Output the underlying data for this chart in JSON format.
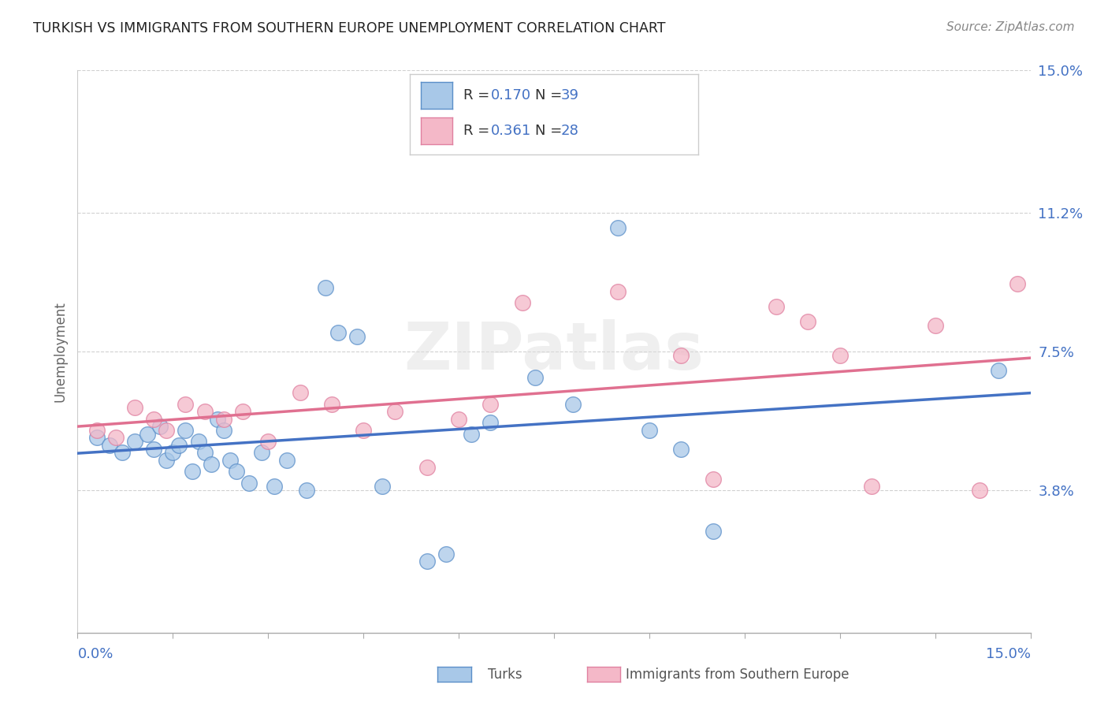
{
  "title": "TURKISH VS IMMIGRANTS FROM SOUTHERN EUROPE UNEMPLOYMENT CORRELATION CHART",
  "source": "Source: ZipAtlas.com",
  "ylabel": "Unemployment",
  "ytick_labels": [
    "3.8%",
    "7.5%",
    "11.2%",
    "15.0%"
  ],
  "ytick_values": [
    3.8,
    7.5,
    11.2,
    15.0
  ],
  "xtick_labels_bottom": [
    "0.0%",
    "15.0%"
  ],
  "xmin": 0.0,
  "xmax": 15.0,
  "ymin": 0.0,
  "ymax": 15.0,
  "legend_label1": "Turks",
  "legend_label2": "Immigrants from Southern Europe",
  "legend_R1": "0.170",
  "legend_N1": "39",
  "legend_R2": "0.361",
  "legend_N2": "28",
  "color_blue_fill": "#A8C8E8",
  "color_blue_edge": "#5B8FC9",
  "color_pink_fill": "#F4B8C8",
  "color_pink_edge": "#E080A0",
  "color_line_blue": "#4472C4",
  "color_line_pink": "#E07090",
  "color_axis_val": "#4472C4",
  "color_legend_text": "#333333",
  "turks_x": [
    0.3,
    0.5,
    0.7,
    0.9,
    1.1,
    1.2,
    1.3,
    1.4,
    1.5,
    1.6,
    1.7,
    1.8,
    1.9,
    2.0,
    2.1,
    2.2,
    2.3,
    2.4,
    2.5,
    2.7,
    2.9,
    3.1,
    3.3,
    3.6,
    3.9,
    4.1,
    4.4,
    4.8,
    5.5,
    5.8,
    6.2,
    6.5,
    7.2,
    7.8,
    8.5,
    9.0,
    9.5,
    10.0,
    14.5
  ],
  "turks_y": [
    5.2,
    5.0,
    4.8,
    5.1,
    5.3,
    4.9,
    5.5,
    4.6,
    4.8,
    5.0,
    5.4,
    4.3,
    5.1,
    4.8,
    4.5,
    5.7,
    5.4,
    4.6,
    4.3,
    4.0,
    4.8,
    3.9,
    4.6,
    3.8,
    9.2,
    8.0,
    7.9,
    3.9,
    1.9,
    2.1,
    5.3,
    5.6,
    6.8,
    6.1,
    10.8,
    5.4,
    4.9,
    2.7,
    7.0
  ],
  "se_x": [
    0.3,
    0.6,
    0.9,
    1.2,
    1.4,
    1.7,
    2.0,
    2.3,
    2.6,
    3.0,
    3.5,
    4.0,
    4.5,
    5.0,
    5.5,
    6.0,
    6.5,
    7.0,
    8.5,
    9.5,
    10.0,
    11.0,
    11.5,
    12.0,
    12.5,
    13.5,
    14.2,
    14.8
  ],
  "se_y": [
    5.4,
    5.2,
    6.0,
    5.7,
    5.4,
    6.1,
    5.9,
    5.7,
    5.9,
    5.1,
    6.4,
    6.1,
    5.4,
    5.9,
    4.4,
    5.7,
    6.1,
    8.8,
    9.1,
    7.4,
    4.1,
    8.7,
    8.3,
    7.4,
    3.9,
    8.2,
    3.8,
    9.3
  ],
  "watermark_text": "ZIPatlas",
  "watermark_color": "#DDDDDD"
}
